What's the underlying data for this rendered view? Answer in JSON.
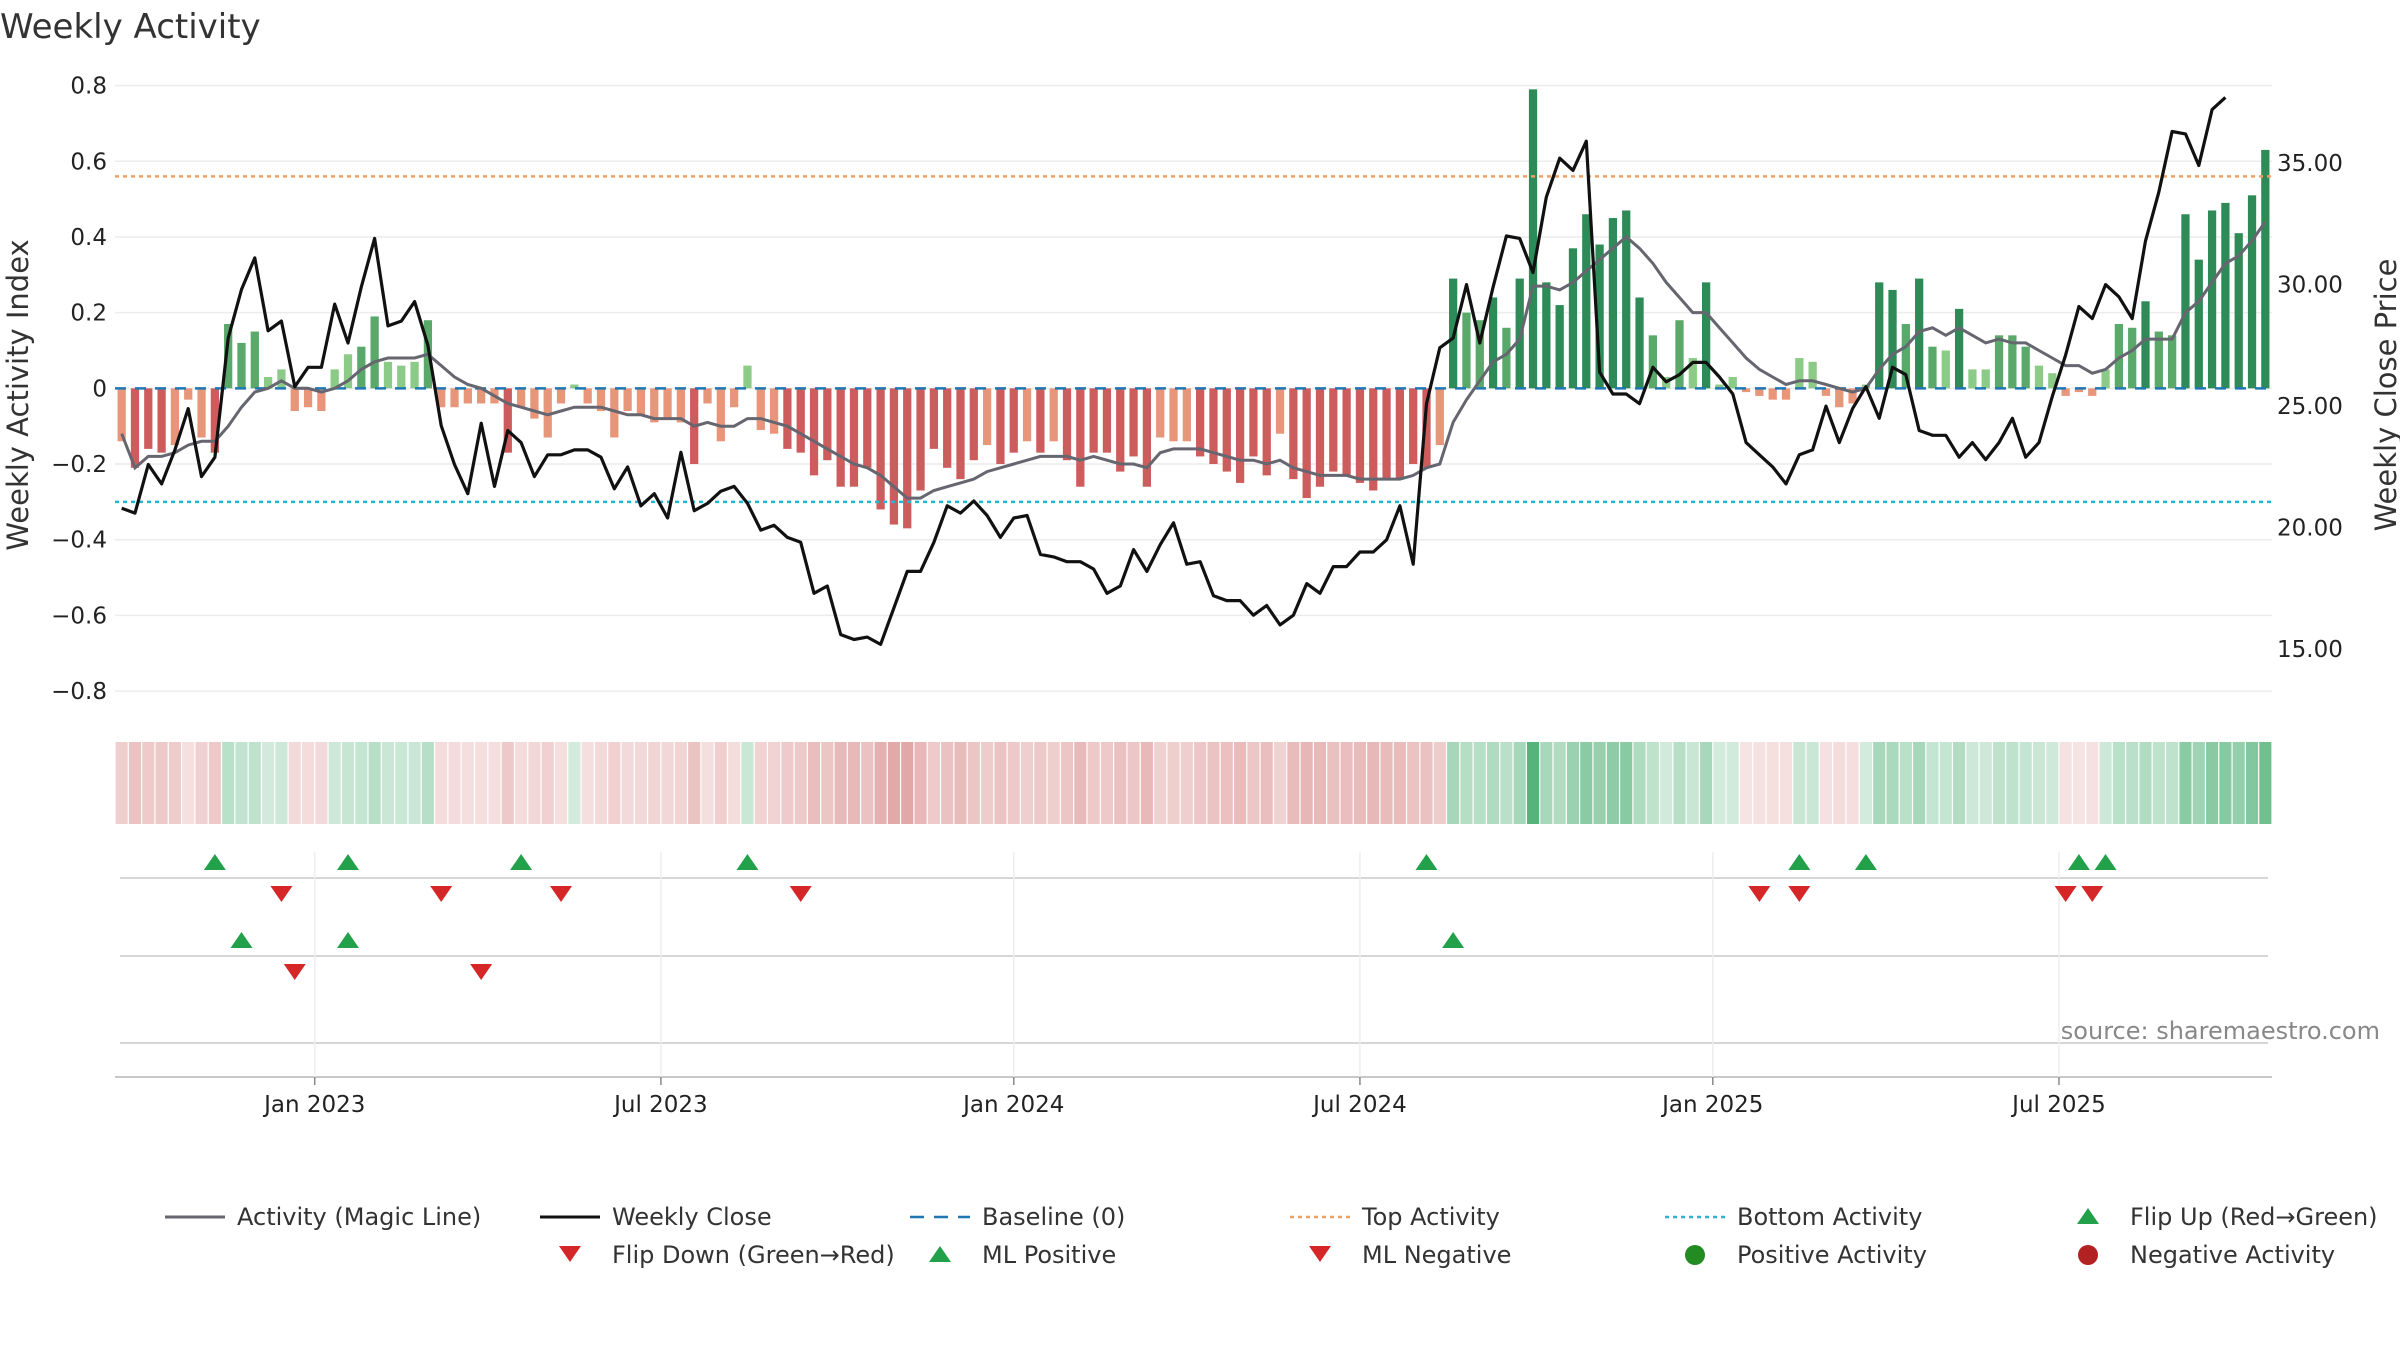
{
  "chart_data": {
    "type": "bar",
    "title": "Weekly Activity",
    "ylabel_left": "Weekly Activity Index",
    "ylabel_right": "Weekly Close Price",
    "ylim_left": [
      -0.85,
      0.82
    ],
    "ylim_right": [
      12.5,
      38.5
    ],
    "yticks_left": [
      "0.8",
      "0.6",
      "0.4",
      "0.2",
      "0",
      "−0.2",
      "−0.4",
      "−0.6",
      "−0.8"
    ],
    "ytick_values_left": [
      0.8,
      0.6,
      0.4,
      0.2,
      0,
      -0.2,
      -0.4,
      -0.6,
      -0.8
    ],
    "yticks_right": [
      "35.00",
      "30.00",
      "25.00",
      "20.00",
      "15.00"
    ],
    "ytick_values_right": [
      35,
      30,
      25,
      20,
      15
    ],
    "xticks": [
      "Jan 2023",
      "Jul 2023",
      "Jan 2024",
      "Jul 2024",
      "Jan 2025",
      "Jul 2025"
    ],
    "xtick_weeks": [
      15,
      41,
      67.5,
      93.5,
      120,
      146
    ],
    "top_activity": 0.56,
    "bottom_activity": -0.3,
    "baseline": 0,
    "activity": [
      -0.14,
      -0.21,
      -0.16,
      -0.17,
      -0.15,
      -0.03,
      -0.13,
      -0.17,
      0.17,
      0.12,
      0.15,
      0.03,
      0.05,
      -0.06,
      -0.05,
      -0.06,
      0.05,
      0.09,
      0.11,
      0.19,
      0.07,
      0.06,
      0.07,
      0.18,
      -0.05,
      -0.05,
      -0.04,
      -0.04,
      -0.04,
      -0.17,
      -0.05,
      -0.08,
      -0.13,
      -0.04,
      0.01,
      -0.04,
      -0.06,
      -0.13,
      -0.06,
      -0.07,
      -0.09,
      -0.08,
      -0.09,
      -0.2,
      -0.04,
      -0.14,
      -0.05,
      0.06,
      -0.11,
      -0.12,
      -0.16,
      -0.17,
      -0.23,
      -0.19,
      -0.26,
      -0.26,
      -0.21,
      -0.32,
      -0.36,
      -0.37,
      -0.27,
      -0.16,
      -0.21,
      -0.24,
      -0.19,
      -0.15,
      -0.2,
      -0.17,
      -0.14,
      -0.17,
      -0.14,
      -0.19,
      -0.26,
      -0.17,
      -0.17,
      -0.22,
      -0.18,
      -0.26,
      -0.13,
      -0.14,
      -0.14,
      -0.18,
      -0.2,
      -0.22,
      -0.25,
      -0.18,
      -0.23,
      -0.12,
      -0.24,
      -0.29,
      -0.26,
      -0.22,
      -0.23,
      -0.25,
      -0.27,
      -0.24,
      -0.24,
      -0.2,
      -0.21,
      -0.15,
      0.29,
      0.2,
      0.18,
      0.24,
      0.16,
      0.29,
      0.79,
      0.28,
      0.22,
      0.37,
      0.46,
      0.38,
      0.45,
      0.47,
      0.24,
      0.14,
      0.03,
      0.18,
      0.08,
      0.28,
      0.01,
      0.03,
      -0.01,
      -0.02,
      -0.03,
      -0.03,
      0.08,
      0.07,
      -0.02,
      -0.05,
      -0.04,
      0.01,
      0.28,
      0.26,
      0.17,
      0.29,
      0.11,
      0.1,
      0.21,
      0.05,
      0.05,
      0.14,
      0.14,
      0.11,
      0.06,
      0.04,
      -0.02,
      -0.01,
      -0.02,
      0.05,
      0.17,
      0.16,
      0.23,
      0.15,
      0.14,
      0.46,
      0.34,
      0.47,
      0.49,
      0.41,
      0.51,
      0.63
    ],
    "magic_line": [
      -0.12,
      -0.21,
      -0.18,
      -0.18,
      -0.17,
      -0.15,
      -0.14,
      -0.14,
      -0.1,
      -0.05,
      -0.01,
      0.0,
      0.02,
      0.0,
      0.0,
      -0.01,
      0.0,
      0.02,
      0.05,
      0.07,
      0.08,
      0.08,
      0.08,
      0.09,
      0.06,
      0.03,
      0.01,
      0.0,
      -0.02,
      -0.04,
      -0.05,
      -0.06,
      -0.07,
      -0.06,
      -0.05,
      -0.05,
      -0.05,
      -0.06,
      -0.07,
      -0.07,
      -0.08,
      -0.08,
      -0.08,
      -0.1,
      -0.09,
      -0.1,
      -0.1,
      -0.08,
      -0.08,
      -0.09,
      -0.1,
      -0.12,
      -0.14,
      -0.16,
      -0.18,
      -0.2,
      -0.21,
      -0.23,
      -0.26,
      -0.29,
      -0.29,
      -0.27,
      -0.26,
      -0.25,
      -0.24,
      -0.22,
      -0.21,
      -0.2,
      -0.19,
      -0.18,
      -0.18,
      -0.18,
      -0.19,
      -0.18,
      -0.19,
      -0.2,
      -0.2,
      -0.21,
      -0.17,
      -0.16,
      -0.16,
      -0.16,
      -0.17,
      -0.18,
      -0.19,
      -0.19,
      -0.2,
      -0.19,
      -0.21,
      -0.22,
      -0.23,
      -0.23,
      -0.23,
      -0.24,
      -0.24,
      -0.24,
      -0.24,
      -0.23,
      -0.21,
      -0.2,
      -0.09,
      -0.03,
      0.02,
      0.07,
      0.09,
      0.13,
      0.27,
      0.27,
      0.26,
      0.28,
      0.31,
      0.34,
      0.37,
      0.4,
      0.37,
      0.33,
      0.28,
      0.24,
      0.2,
      0.2,
      0.16,
      0.12,
      0.08,
      0.05,
      0.03,
      0.01,
      0.02,
      0.02,
      0.01,
      0.0,
      -0.01,
      0.0,
      0.05,
      0.09,
      0.11,
      0.15,
      0.16,
      0.14,
      0.16,
      0.14,
      0.12,
      0.13,
      0.12,
      0.12,
      0.1,
      0.08,
      0.06,
      0.06,
      0.04,
      0.05,
      0.08,
      0.1,
      0.13,
      0.13,
      0.13,
      0.2,
      0.23,
      0.28,
      0.33,
      0.35,
      0.39,
      0.44
    ],
    "weekly_close": [
      20.8,
      20.6,
      22.6,
      21.8,
      23.2,
      24.9,
      22.1,
      22.9,
      27.8,
      29.8,
      31.1,
      28.1,
      28.5,
      25.8,
      26.6,
      26.6,
      29.2,
      27.6,
      29.9,
      31.9,
      28.3,
      28.5,
      29.3,
      27.5,
      24.2,
      22.6,
      21.4,
      24.3,
      21.7,
      24.0,
      23.5,
      22.1,
      23.0,
      23.0,
      23.2,
      23.2,
      22.9,
      21.6,
      22.5,
      20.9,
      21.4,
      20.4,
      23.1,
      20.7,
      21.0,
      21.5,
      21.7,
      21.0,
      19.9,
      20.1,
      19.6,
      19.4,
      17.3,
      17.6,
      15.6,
      15.4,
      15.5,
      15.2,
      16.7,
      18.2,
      18.2,
      19.4,
      20.9,
      20.6,
      21.1,
      20.5,
      19.6,
      20.4,
      20.5,
      18.9,
      18.8,
      18.6,
      18.6,
      18.3,
      17.3,
      17.6,
      19.1,
      18.2,
      19.3,
      20.2,
      18.5,
      18.6,
      17.2,
      17.0,
      17.0,
      16.4,
      16.8,
      16.0,
      16.4,
      17.7,
      17.3,
      18.4,
      18.4,
      19.0,
      19.0,
      19.5,
      20.9,
      18.5,
      25.1,
      27.4,
      27.8,
      30.0,
      27.6,
      29.9,
      32.0,
      31.9,
      30.5,
      33.6,
      35.2,
      34.7,
      35.9,
      26.4,
      25.5,
      25.5,
      25.1,
      26.6,
      26.0,
      26.3,
      26.8,
      26.8,
      26.2,
      25.5,
      23.5,
      23.0,
      22.5,
      21.8,
      23.0,
      23.2,
      25.0,
      23.5,
      24.9,
      25.8,
      24.5,
      26.6,
      26.3,
      24.0,
      23.8,
      23.8,
      22.9,
      23.5,
      22.8,
      23.5,
      24.5,
      22.9,
      23.5,
      25.4,
      27.1,
      29.1,
      28.6,
      30.0,
      29.5,
      28.6,
      31.8,
      33.8,
      36.3,
      36.2,
      34.9,
      37.2,
      37.7
    ],
    "heat_strip_min": -0.37,
    "heat_strip_max": 0.79,
    "markers": {
      "flip_up_row1": [
        7,
        17,
        30,
        47,
        98,
        126,
        131,
        147,
        149
      ],
      "flip_down_row1": [
        12,
        24,
        33,
        51,
        123,
        126,
        146,
        148
      ],
      "ml_positive_row2": [
        9,
        17,
        100
      ],
      "ml_negative_row2": [
        13,
        27
      ]
    },
    "legend": [
      "Activity (Magic Line)",
      "Weekly Close",
      "Baseline (0)",
      "Top Activity",
      "Bottom Activity",
      "Flip Up (Red→Green)",
      "Flip Down (Green→Red)",
      "ML Positive",
      "ML Negative",
      "Positive Activity",
      "Negative Activity"
    ],
    "source": "source: sharemaestro.com"
  }
}
